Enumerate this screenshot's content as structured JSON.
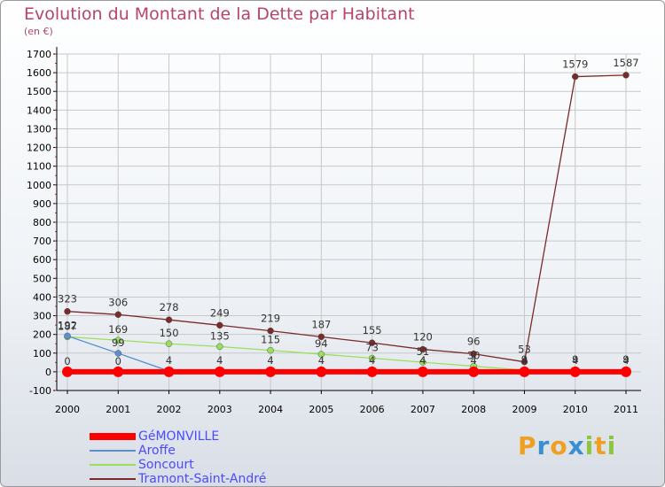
{
  "header": {
    "title": "Evolution du Montant de la Dette par Habitant",
    "subtitle": "(en €)"
  },
  "logo": {
    "text": "Proxiti"
  },
  "colors": {
    "title": "#b5446e",
    "legend_text": "#4a4aff",
    "axis": "#000000",
    "grid": "#c8c8c8"
  },
  "chart_data": {
    "type": "line",
    "title": "Evolution du Montant de la Dette par Habitant",
    "subtitle": "(en €)",
    "x": [
      "2000",
      "2001",
      "2002",
      "2003",
      "2004",
      "2005",
      "2006",
      "2007",
      "2008",
      "2009",
      "2010",
      "2011"
    ],
    "ylim": [
      -100,
      1700
    ],
    "yticks": [
      -100,
      0,
      100,
      200,
      300,
      400,
      500,
      600,
      700,
      800,
      900,
      1000,
      1100,
      1200,
      1300,
      1400,
      1500,
      1600,
      1700
    ],
    "grid": true,
    "legend_position": "bottom-left",
    "series": [
      {
        "name": "GéMONVILLE",
        "color": "#ff0000",
        "values": [
          0,
          0,
          0,
          0,
          0,
          0,
          0,
          0,
          0,
          0,
          0,
          0
        ],
        "labels": [
          "0",
          "0",
          "",
          "",
          "",
          "",
          "",
          "",
          "",
          "",
          "",
          ""
        ]
      },
      {
        "name": "Aroffe",
        "color": "#5b8fd0",
        "values": [
          192,
          99,
          4,
          4,
          4,
          4,
          4,
          4,
          4,
          4,
          4,
          4
        ],
        "labels": [
          "192",
          "99",
          "4",
          "4",
          "4",
          "4",
          "4",
          "4",
          "4",
          "4",
          "4",
          "4"
        ]
      },
      {
        "name": "Soncourt",
        "color": "#99e05a",
        "values": [
          187,
          169,
          150,
          135,
          115,
          94,
          73,
          51,
          30,
          9,
          9,
          9
        ],
        "labels": [
          "187",
          "169",
          "150",
          "135",
          "115",
          "94",
          "73",
          "51",
          "30",
          "9",
          "9",
          "9"
        ]
      },
      {
        "name": "Tramont-Saint-André",
        "color": "#7a2a2a",
        "values": [
          323,
          306,
          278,
          249,
          219,
          187,
          155,
          120,
          96,
          53,
          1579,
          1587
        ],
        "labels": [
          "323",
          "306",
          "278",
          "249",
          "219",
          "187",
          "155",
          "120",
          "96",
          "53",
          "1579",
          "1587"
        ]
      }
    ]
  }
}
